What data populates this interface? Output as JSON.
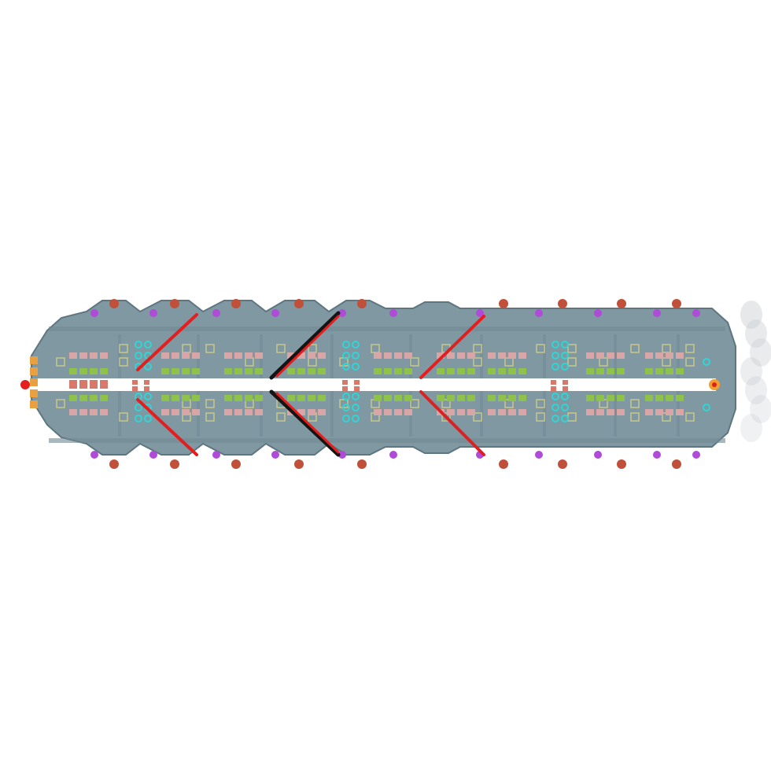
{
  "scene": {
    "background": "#ffffff",
    "hull_color": "#7f98a2",
    "hull_edge_color": "#5f7680",
    "corridor_color": "#ffffff",
    "bay_color": "#6f8892"
  },
  "colors": {
    "beam_red": "#e41e1e",
    "beam_black": "#141414",
    "turret_purple": "#b04ad8",
    "turret_red": "#c0503a",
    "thruster_orange": "#e8a040",
    "engine_glow": "#f0a030",
    "outline_yellow": "#c8c88a",
    "module_green": "#8ec24a",
    "module_cyan": "#2ed6d6",
    "module_pink": "#d8a6a6",
    "module_salmon": "#d8786a",
    "exhaust": "#c8ccd0"
  },
  "icons": {
    "ship": "carrier-ship-icon",
    "turret": "turret-icon",
    "beam": "laser-beam-icon",
    "thruster": "thruster-icon",
    "engine": "engine-icon"
  }
}
